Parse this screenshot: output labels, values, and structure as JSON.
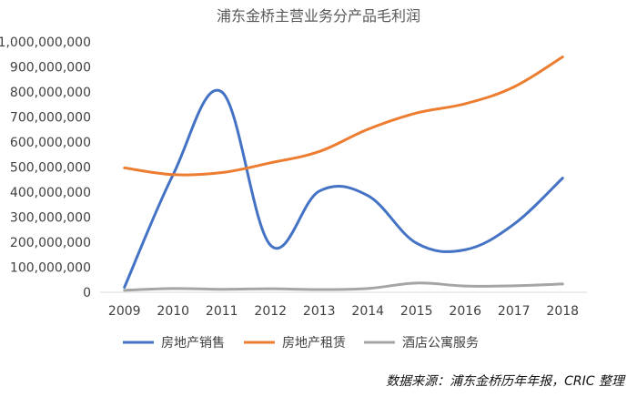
{
  "chart_data": {
    "type": "line",
    "title": "浦东金桥主营业务分产品毛利润",
    "xlabel": "",
    "ylabel": "",
    "categories": [
      "2009",
      "2010",
      "2011",
      "2012",
      "2013",
      "2014",
      "2015",
      "2016",
      "2017",
      "2018"
    ],
    "ylim": [
      0,
      1000000000
    ],
    "yticks": [
      0,
      100000000,
      200000000,
      300000000,
      400000000,
      500000000,
      600000000,
      700000000,
      800000000,
      900000000,
      1000000000
    ],
    "ytick_labels": [
      "0",
      "100,000,000",
      "200,000,000",
      "300,000,000",
      "400,000,000",
      "500,000,000",
      "600,000,000",
      "700,000,000",
      "800,000,000",
      "900,000,000",
      "1,000,000,000"
    ],
    "grid": false,
    "legend_position": "bottom",
    "series": [
      {
        "name": "房地产销售",
        "color": "#4472C4",
        "values": [
          20000000,
          470000000,
          800000000,
          188000000,
          404000000,
          386000000,
          196000000,
          170000000,
          272000000,
          456000000
        ]
      },
      {
        "name": "房地产租赁",
        "color": "#ED7D31",
        "values": [
          497000000,
          470000000,
          478000000,
          517000000,
          562000000,
          651000000,
          716000000,
          753000000,
          820000000,
          940000000
        ]
      },
      {
        "name": "酒店公寓服务",
        "color": "#A5A5A5",
        "values": [
          8000000,
          15000000,
          12000000,
          14000000,
          11000000,
          15000000,
          37000000,
          25000000,
          26000000,
          33000000
        ]
      }
    ]
  },
  "source_note": "数据来源：浦东金桥历年年报，CRIC 整理"
}
